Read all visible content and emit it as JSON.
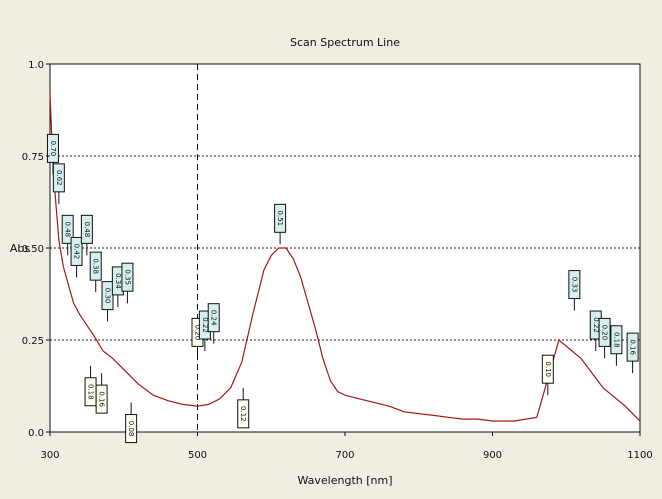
{
  "chart_data": {
    "type": "line",
    "title": "Scan Spectrum Line",
    "xlabel": "Wavelength [nm]",
    "ylabel": "Abs",
    "xlim": [
      300,
      1100
    ],
    "ylim": [
      0.0,
      1.0
    ],
    "x_ticks": [
      "300",
      "500",
      "700",
      "900",
      "1100"
    ],
    "y_ticks": [
      "0.0",
      "0.25",
      "0.50",
      "0.75",
      "1.0"
    ],
    "grid": "horizontal dotted",
    "cursor_x": 500,
    "colors": {
      "background": "#f0eee2",
      "plot": "#ffffff",
      "line": "#a01818",
      "marker_fill": "#d6efef",
      "marker_fill_alt": "#fffef0"
    },
    "series": [
      {
        "x": [
          300,
          302,
          305,
          308,
          312,
          318,
          325,
          332,
          340,
          350,
          360,
          372,
          385,
          400,
          420,
          440,
          460,
          480,
          500,
          515,
          530,
          545,
          560,
          575,
          590,
          600,
          610,
          620,
          630,
          640,
          650,
          660,
          670,
          680,
          690,
          700,
          720,
          740,
          760,
          780,
          800,
          820,
          840,
          860,
          880,
          900,
          930,
          960,
          990,
          1020,
          1050,
          1080,
          1100
        ],
        "values": [
          0.92,
          0.82,
          0.7,
          0.62,
          0.52,
          0.45,
          0.4,
          0.35,
          0.32,
          0.29,
          0.26,
          0.22,
          0.2,
          0.17,
          0.13,
          0.1,
          0.085,
          0.075,
          0.07,
          0.075,
          0.09,
          0.12,
          0.19,
          0.32,
          0.44,
          0.48,
          0.5,
          0.5,
          0.47,
          0.42,
          0.35,
          0.28,
          0.2,
          0.14,
          0.11,
          0.1,
          0.09,
          0.08,
          0.07,
          0.055,
          0.05,
          0.045,
          0.04,
          0.035,
          0.035,
          0.03,
          0.03,
          0.04,
          0.25,
          0.2,
          0.12,
          0.07,
          0.03
        ]
      }
    ],
    "peak_markers": [
      {
        "x": 304,
        "y": 0.7,
        "value": "0.70",
        "dir": "up",
        "style": "teal"
      },
      {
        "x": 312,
        "y": 0.62,
        "value": "0.62",
        "dir": "up",
        "style": "teal"
      },
      {
        "x": 324,
        "y": 0.48,
        "value": "0.48",
        "dir": "up",
        "style": "teal"
      },
      {
        "x": 336,
        "y": 0.42,
        "value": "0.42",
        "dir": "up",
        "style": "teal"
      },
      {
        "x": 350,
        "y": 0.48,
        "value": "0.48",
        "dir": "up",
        "style": "teal"
      },
      {
        "x": 362,
        "y": 0.38,
        "value": "0.38",
        "dir": "up",
        "style": "teal"
      },
      {
        "x": 378,
        "y": 0.3,
        "value": "0.30",
        "dir": "up",
        "style": "teal"
      },
      {
        "x": 392,
        "y": 0.34,
        "value": "0.34",
        "dir": "up",
        "style": "teal"
      },
      {
        "x": 405,
        "y": 0.35,
        "value": "0.35",
        "dir": "up",
        "style": "teal"
      },
      {
        "x": 500,
        "y": 0.2,
        "value": "0.20",
        "dir": "up",
        "style": "plain"
      },
      {
        "x": 510,
        "y": 0.22,
        "value": "0.22",
        "dir": "up",
        "style": "teal"
      },
      {
        "x": 522,
        "y": 0.24,
        "value": "0.24",
        "dir": "up",
        "style": "teal"
      },
      {
        "x": 612,
        "y": 0.51,
        "value": "0.51",
        "dir": "up",
        "style": "teal"
      },
      {
        "x": 975,
        "y": 0.1,
        "value": "0.10",
        "dir": "up",
        "style": "plain"
      },
      {
        "x": 1011,
        "y": 0.33,
        "value": "0.33",
        "dir": "up",
        "style": "teal"
      },
      {
        "x": 1040,
        "y": 0.22,
        "value": "0.22",
        "dir": "up",
        "style": "teal"
      },
      {
        "x": 1052,
        "y": 0.2,
        "value": "0.20",
        "dir": "up",
        "style": "teal"
      },
      {
        "x": 1068,
        "y": 0.18,
        "value": "0.18",
        "dir": "up",
        "style": "teal"
      },
      {
        "x": 1090,
        "y": 0.16,
        "value": "0.16",
        "dir": "up",
        "style": "teal"
      },
      {
        "x": 355,
        "y": 0.18,
        "value": "0.18",
        "dir": "down",
        "style": "plain"
      },
      {
        "x": 370,
        "y": 0.16,
        "value": "0.16",
        "dir": "down",
        "style": "plain"
      },
      {
        "x": 410,
        "y": 0.08,
        "value": "0.08",
        "dir": "down",
        "style": "plain"
      },
      {
        "x": 562,
        "y": 0.12,
        "value": "0.12",
        "dir": "down",
        "style": "plain"
      }
    ]
  }
}
